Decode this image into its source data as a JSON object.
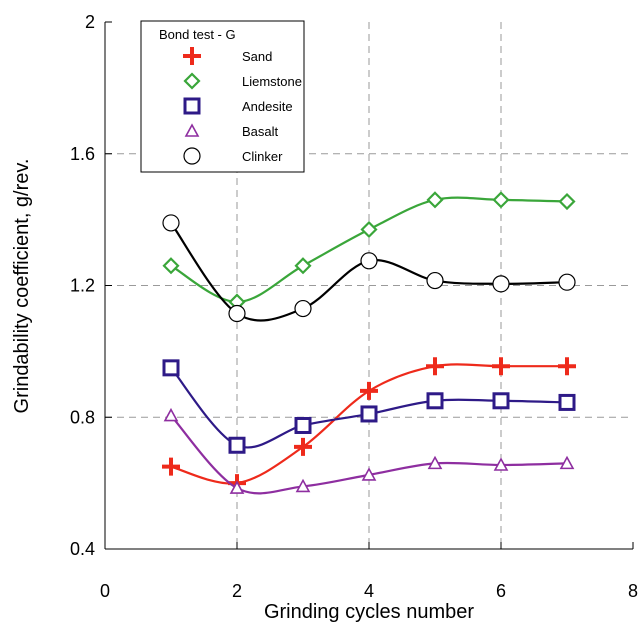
{
  "chart_data": {
    "type": "line",
    "xlabel": "Grinding cycles number",
    "ylabel": "Grindability coefficient, g/rev.",
    "xlim": [
      0,
      8
    ],
    "ylim": [
      0.4,
      2.0
    ],
    "x_ticks": [
      "0",
      "2",
      "4",
      "6",
      "8"
    ],
    "y_ticks": [
      "0.4",
      "0.8",
      "1.2",
      "1.6",
      "2"
    ],
    "grid": true,
    "legend_title": "Bond test - G",
    "legend_position": "top-left",
    "x": [
      1,
      2,
      3,
      4,
      5,
      6,
      7
    ],
    "series": [
      {
        "name": "Sand",
        "marker": "cross",
        "color": "#ee2a1b",
        "values": [
          0.65,
          0.6,
          0.71,
          0.88,
          0.955,
          0.955,
          0.955
        ]
      },
      {
        "name": "Liemstone",
        "marker": "diamond",
        "color": "#3aa63a",
        "values": [
          1.26,
          1.15,
          1.26,
          1.37,
          1.46,
          1.46,
          1.455
        ]
      },
      {
        "name": "Andesite",
        "marker": "square",
        "color": "#2e1a87",
        "values": [
          0.95,
          0.715,
          0.775,
          0.81,
          0.85,
          0.85,
          0.845
        ]
      },
      {
        "name": "Basalt",
        "marker": "triangle",
        "color": "#8e2ea0",
        "values": [
          0.805,
          0.585,
          0.59,
          0.625,
          0.66,
          0.655,
          0.66
        ]
      },
      {
        "name": "Clinker",
        "marker": "circle",
        "color": "#000000",
        "values": [
          1.39,
          1.115,
          1.13,
          1.275,
          1.215,
          1.205,
          1.21
        ]
      }
    ]
  }
}
